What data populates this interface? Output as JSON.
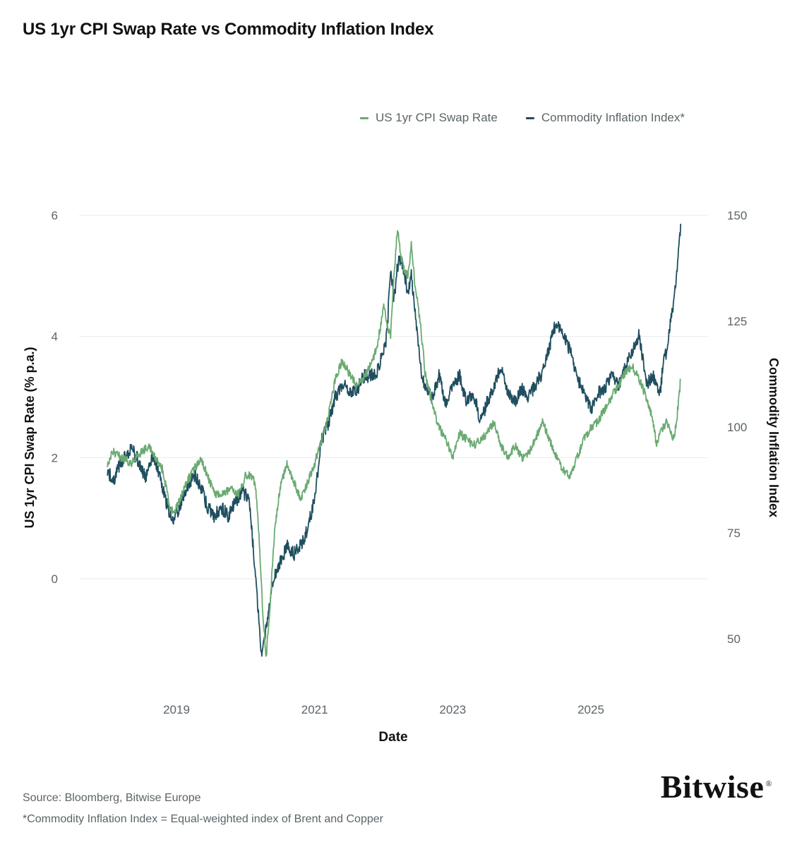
{
  "title": "US 1yr CPI Swap Rate vs Commodity Inflation Index",
  "legend": {
    "items": [
      {
        "label": "US 1yr CPI Swap Rate",
        "color": "#6aaa72"
      },
      {
        "label": "Commodity Inflation Index*",
        "color": "#1f4e5f"
      }
    ]
  },
  "footnotes": {
    "source": "Source: Bloomberg, Bitwise Europe",
    "note": "*Commodity Inflation Index = Equal-weighted index of Brent and Copper"
  },
  "brand": {
    "name": "Bitwise",
    "mark": "®"
  },
  "chart_data": {
    "type": "line",
    "title": "US 1yr CPI Swap Rate vs Commodity Inflation Index",
    "xlabel": "Date",
    "ylabel_left": "US 1yr CPI Swap Rate (% p.a.)",
    "ylabel_right": "Commodity Inflation Index",
    "x_ticks": [
      "2019",
      "2021",
      "2023",
      "2025"
    ],
    "x_tick_values": [
      2019.0,
      2021.0,
      2023.0,
      2025.0
    ],
    "xlim": [
      2017.9,
      2026.4
    ],
    "y_left_ticks": [
      "0",
      "2",
      "4",
      "6"
    ],
    "y_left_tick_values": [
      0,
      2,
      4,
      6
    ],
    "y_left_lim": [
      -1.7,
      6.0
    ],
    "y_right_ticks": [
      "50",
      "75",
      "100",
      "125",
      "150"
    ],
    "y_right_tick_values": [
      50,
      75,
      100,
      125,
      150
    ],
    "y_right_lim": [
      43.6,
      150.0
    ],
    "grid": true,
    "legend_position": "top-right",
    "series": [
      {
        "name": "US 1yr CPI Swap Rate",
        "axis": "left",
        "color": "#6aaa72",
        "x": [
          2018.0,
          2018.08,
          2018.2,
          2018.35,
          2018.5,
          2018.6,
          2018.7,
          2018.8,
          2018.9,
          2018.95,
          2019.05,
          2019.15,
          2019.25,
          2019.35,
          2019.45,
          2019.55,
          2019.65,
          2019.8,
          2019.9,
          2020.0,
          2020.1,
          2020.15,
          2020.2,
          2020.25,
          2020.3,
          2020.35,
          2020.42,
          2020.5,
          2020.6,
          2020.7,
          2020.8,
          2020.9,
          2021.0,
          2021.1,
          2021.2,
          2021.3,
          2021.4,
          2021.5,
          2021.6,
          2021.7,
          2021.8,
          2021.9,
          2022.0,
          2022.05,
          2022.1,
          2022.15,
          2022.2,
          2022.25,
          2022.3,
          2022.35,
          2022.4,
          2022.45,
          2022.5,
          2022.55,
          2022.6,
          2022.7,
          2022.8,
          2022.9,
          2023.0,
          2023.1,
          2023.2,
          2023.3,
          2023.4,
          2023.5,
          2023.6,
          2023.7,
          2023.8,
          2023.9,
          2024.0,
          2024.1,
          2024.2,
          2024.3,
          2024.4,
          2024.5,
          2024.6,
          2024.7,
          2024.8,
          2024.9,
          2025.0,
          2025.1,
          2025.2,
          2025.3,
          2025.4,
          2025.5,
          2025.6,
          2025.7,
          2025.8,
          2025.9,
          2025.95,
          2026.0,
          2026.1,
          2026.2,
          2026.25,
          2026.3
        ],
        "values": [
          1.9,
          2.1,
          2.0,
          1.9,
          2.1,
          2.2,
          2.0,
          1.8,
          1.2,
          1.1,
          1.3,
          1.6,
          1.8,
          2.0,
          1.7,
          1.4,
          1.4,
          1.5,
          1.4,
          1.7,
          1.7,
          1.5,
          0.6,
          -0.6,
          -1.3,
          -0.5,
          0.8,
          1.5,
          1.9,
          1.6,
          1.3,
          1.6,
          1.9,
          2.3,
          2.7,
          3.3,
          3.6,
          3.4,
          3.2,
          3.3,
          3.5,
          3.8,
          4.5,
          4.2,
          4.0,
          5.0,
          5.8,
          5.3,
          5.1,
          5.0,
          5.5,
          4.9,
          4.5,
          4.0,
          3.4,
          2.9,
          2.5,
          2.3,
          2.0,
          2.4,
          2.3,
          2.2,
          2.3,
          2.4,
          2.6,
          2.2,
          2.0,
          2.2,
          2.0,
          2.1,
          2.3,
          2.6,
          2.3,
          2.0,
          1.8,
          1.7,
          2.0,
          2.3,
          2.5,
          2.6,
          2.8,
          3.0,
          3.2,
          3.4,
          3.5,
          3.3,
          3.0,
          2.6,
          2.2,
          2.4,
          2.6,
          2.3,
          2.7,
          3.3
        ]
      },
      {
        "name": "Commodity Inflation Index*",
        "axis": "right",
        "color": "#1f4e5f",
        "x": [
          2018.0,
          2018.08,
          2018.15,
          2018.25,
          2018.35,
          2018.45,
          2018.55,
          2018.65,
          2018.75,
          2018.85,
          2018.95,
          2019.05,
          2019.15,
          2019.25,
          2019.35,
          2019.45,
          2019.55,
          2019.65,
          2019.75,
          2019.85,
          2019.95,
          2020.05,
          2020.12,
          2020.18,
          2020.23,
          2020.28,
          2020.33,
          2020.4,
          2020.5,
          2020.6,
          2020.7,
          2020.8,
          2020.9,
          2021.0,
          2021.1,
          2021.2,
          2021.3,
          2021.4,
          2021.5,
          2021.6,
          2021.7,
          2021.8,
          2021.9,
          2022.0,
          2022.05,
          2022.1,
          2022.15,
          2022.2,
          2022.25,
          2022.3,
          2022.35,
          2022.4,
          2022.45,
          2022.5,
          2022.55,
          2022.6,
          2022.7,
          2022.8,
          2022.9,
          2023.0,
          2023.1,
          2023.2,
          2023.3,
          2023.4,
          2023.5,
          2023.6,
          2023.7,
          2023.8,
          2023.9,
          2024.0,
          2024.1,
          2024.2,
          2024.3,
          2024.4,
          2024.5,
          2024.6,
          2024.7,
          2024.8,
          2024.9,
          2025.0,
          2025.1,
          2025.2,
          2025.3,
          2025.4,
          2025.5,
          2025.6,
          2025.7,
          2025.8,
          2025.9,
          2026.0,
          2026.05,
          2026.1,
          2026.15,
          2026.2,
          2026.25,
          2026.3
        ],
        "values": [
          90,
          87,
          90,
          93,
          95,
          92,
          88,
          93,
          89,
          82,
          78,
          81,
          85,
          89,
          86,
          81,
          79,
          81,
          79,
          82,
          85,
          83,
          70,
          57,
          46,
          50,
          57,
          64,
          68,
          72,
          70,
          72,
          76,
          83,
          97,
          101,
          107,
          110,
          109,
          108,
          112,
          112,
          113,
          118,
          122,
          138,
          130,
          138,
          140,
          136,
          132,
          136,
          128,
          120,
          112,
          110,
          107,
          112,
          105,
          110,
          112,
          106,
          108,
          101,
          106,
          110,
          114,
          108,
          106,
          109,
          107,
          110,
          113,
          119,
          125,
          122,
          118,
          112,
          108,
          104,
          108,
          109,
          112,
          110,
          114,
          118,
          122,
          110,
          112,
          108,
          115,
          118,
          124,
          130,
          138,
          148
        ]
      }
    ]
  }
}
